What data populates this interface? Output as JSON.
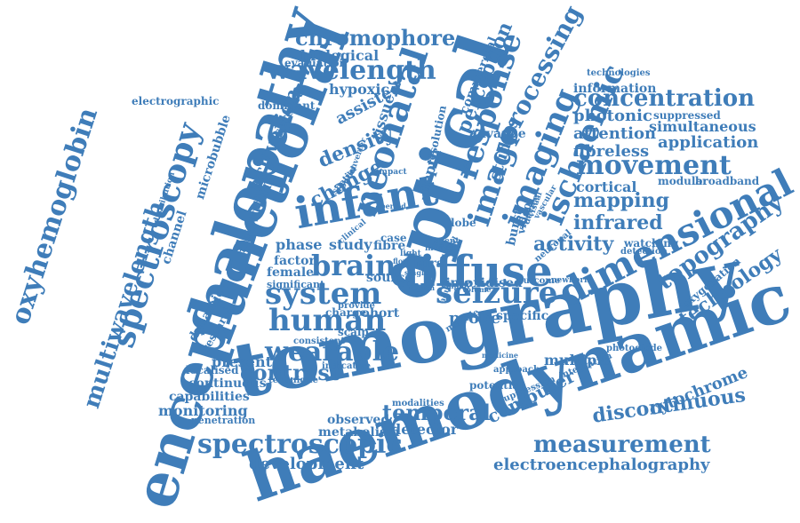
{
  "cloud": {
    "color": "#3f7db9",
    "words": [
      "tomography",
      "haemodynamic",
      "optical",
      "functional",
      "encephalopathy",
      "infant",
      "diffuse",
      "dimensional",
      "imaging",
      "neonatal",
      "image",
      "response",
      "ischaemic",
      "spectroscopy",
      "seizure",
      "system",
      "human",
      "brain",
      "movement",
      "wavelength",
      "chromophore",
      "concentration",
      "oxyhemoglobin",
      "multiwavelength",
      "spectroscopic",
      "measurement",
      "wearable",
      "topography",
      "technology",
      "processing",
      "electroencephalography",
      "discontinuous",
      "temporal",
      "contrast",
      "mapping",
      "infrared",
      "activity",
      "change",
      "density",
      "computer",
      "development",
      "cytochrome",
      "application",
      "photonic",
      "attention",
      "fibreless",
      "cortical",
      "modular",
      "broadband",
      "information",
      "technologies",
      "simultaneous",
      "suppressed",
      "biological",
      "evaluation",
      "hypoxic",
      "perception",
      "commercial",
      "electrographic",
      "dominant",
      "cerebral",
      "assisted",
      "tissue",
      "microbubble",
      "activation",
      "algorithm",
      "channel",
      "spatial",
      "optic",
      "converter",
      "lobe",
      "studies",
      "burst",
      "video",
      "advance",
      "resolution",
      "depth",
      "phase",
      "factor",
      "female",
      "significant",
      "study",
      "fibre",
      "case",
      "source",
      "nirs",
      "time",
      "oxidised",
      "specific",
      "probe",
      "cohort",
      "charge",
      "dynamic",
      "research",
      "present",
      "consistent",
      "localised",
      "continuous",
      "capabilities",
      "monitoring",
      "penetration",
      "technique",
      "indicative",
      "observed",
      "metabolism",
      "detector",
      "modalities",
      "potential",
      "approach",
      "suppression",
      "integration",
      "multiple",
      "photodiode",
      "medicine",
      "module",
      "adult",
      "outcome",
      "newborn",
      "watching",
      "detection",
      "oxygenation",
      "neuronal",
      "clinical",
      "provide",
      "monitor",
      "region",
      "agent",
      "state",
      "volume",
      "employ",
      "device",
      "vascular",
      "digital",
      "light",
      "flow",
      "single",
      "scalp",
      "impact",
      "period",
      "visual",
      "distribution"
    ]
  }
}
